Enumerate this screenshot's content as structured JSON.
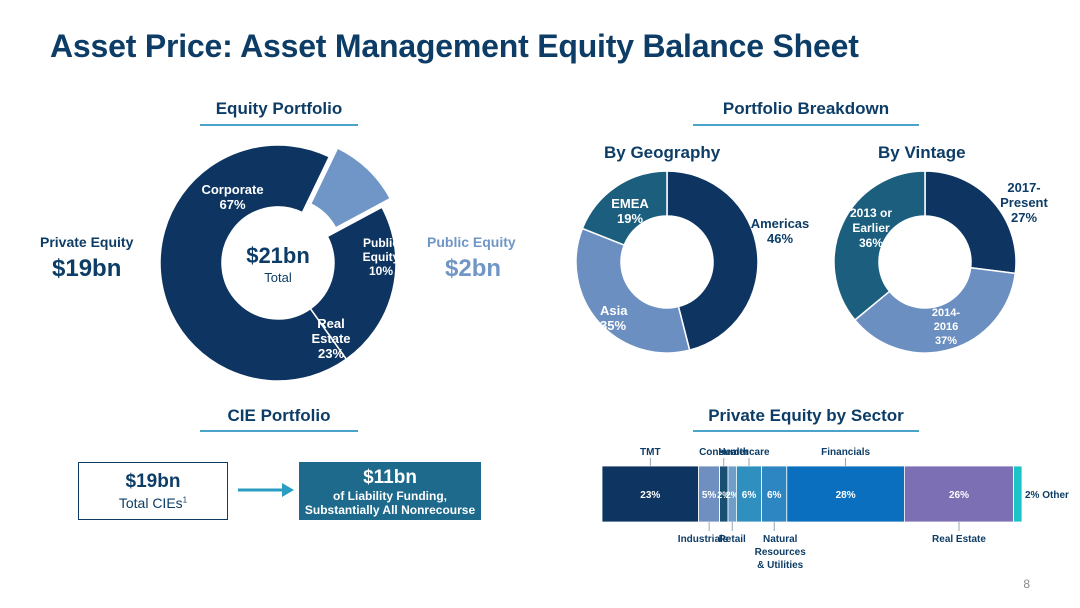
{
  "slide": {
    "title": "Asset Price: Asset Management Equity Balance Sheet",
    "page_number": "8"
  },
  "equity_portfolio": {
    "heading": "Equity Portfolio",
    "center_value": "$21bn",
    "center_label": "Total",
    "private_label": "Private Equity",
    "private_value": "$19bn",
    "public_label": "Public Equity",
    "public_value": "$2bn"
  },
  "portfolio_breakdown": {
    "heading": "Portfolio Breakdown",
    "geo_title": "By Geography",
    "vintage_title": "By Vintage"
  },
  "cie_portfolio": {
    "heading": "CIE Portfolio",
    "box1_value": "$19bn",
    "box1_text": "Total CIEs",
    "box1_sup": "1",
    "box2_value": "$11bn",
    "box2_line1": "of Liability Funding,",
    "box2_line2": "Substantially All Nonrecourse"
  },
  "sector": {
    "heading": "Private Equity by Sector"
  },
  "colors": {
    "navy": "#0e3561",
    "public": "#6f96c6",
    "real_estate": "#0e3561",
    "geo_americas": "#0e3561",
    "geo_asia": "#6b8fc1",
    "geo_emea": "#1c5e7e",
    "arrow": "#2a9dc2"
  },
  "chart_data": [
    {
      "type": "pie",
      "title": "Equity Portfolio",
      "categories": [
        "Corporate",
        "Public Equity",
        "Real Estate"
      ],
      "values": [
        67,
        10,
        23
      ],
      "labels": [
        "Corporate\n67%",
        "Public\nEquity\n10%",
        "Real\nEstate\n23%"
      ],
      "center": "$21bn Total"
    },
    {
      "type": "pie",
      "title": "By Geography",
      "categories": [
        "Americas",
        "Asia",
        "EMEA"
      ],
      "values": [
        46,
        35,
        19
      ],
      "labels": [
        "Americas\n46%",
        "Asia\n35%",
        "EMEA\n19%"
      ]
    },
    {
      "type": "pie",
      "title": "By Vintage",
      "categories": [
        "2017-Present",
        "2014-2016",
        "2013 or Earlier"
      ],
      "values": [
        27,
        37,
        36
      ],
      "labels": [
        "2017-\nPresent\n27%",
        "2014-\n2016\n37%",
        "2013 or\nEarlier\n36%"
      ]
    },
    {
      "type": "bar",
      "orientation": "horizontal-stacked",
      "title": "Private Equity by Sector",
      "categories": [
        "TMT",
        "Industrials",
        "Consumer",
        "Retail",
        "Healthcare",
        "Natural Resources & Utilities",
        "Financials",
        "Real Estate",
        "Other"
      ],
      "values": [
        23,
        5,
        2,
        2,
        6,
        6,
        28,
        26,
        2
      ],
      "value_labels": [
        "23%",
        "5%",
        "2%",
        "2%",
        "6%",
        "6%",
        "28%",
        "26%",
        "2% Other"
      ],
      "colors": [
        "#0e3561",
        "#6f8fc0",
        "#1a4f74",
        "#6f9fc8",
        "#2f8fbf",
        "#2d86c2",
        "#0a6fbf",
        "#7c6fb3",
        "#1cc3c7"
      ],
      "top_labels": [
        "TMT",
        "Consumer",
        "Healthcare",
        "Financials"
      ],
      "bottom_labels": [
        "Industrials",
        "Retail",
        "Natural\nResources\n& Utilities",
        "Real Estate"
      ]
    }
  ]
}
